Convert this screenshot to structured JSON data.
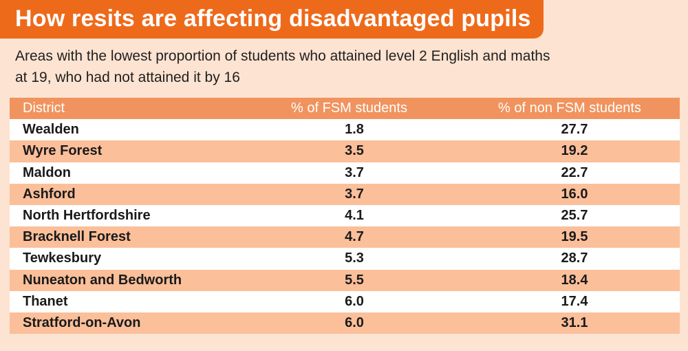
{
  "header": {
    "title": "How resits are affecting disadvantaged pupils",
    "subtitle_line1": "Areas with the lowest proportion of students who attained level 2 English and maths",
    "subtitle_line2": "at 19, who had not attained it by 16"
  },
  "colors": {
    "title_bar": "#ee6a1b",
    "table_header": "#f1935e",
    "row_alt": "#fbbf9a",
    "background": "#fde3d1"
  },
  "chart_data": {
    "type": "table",
    "title": "How resits are affecting disadvantaged pupils",
    "subtitle": "Areas with the lowest proportion of students who attained level 2 English and maths at 19, who had not attained it by 16",
    "columns": [
      "District",
      "% of FSM students",
      "% of non FSM students"
    ],
    "rows": [
      {
        "district": "Wealden",
        "fsm": "1.8",
        "non_fsm": "27.7"
      },
      {
        "district": "Wyre Forest",
        "fsm": "3.5",
        "non_fsm": "19.2"
      },
      {
        "district": "Maldon",
        "fsm": "3.7",
        "non_fsm": "22.7"
      },
      {
        "district": "Ashford",
        "fsm": "3.7",
        "non_fsm": "16.0"
      },
      {
        "district": "North Hertfordshire",
        "fsm": "4.1",
        "non_fsm": "25.7"
      },
      {
        "district": "Bracknell Forest",
        "fsm": "4.7",
        "non_fsm": "19.5"
      },
      {
        "district": "Tewkesbury",
        "fsm": "5.3",
        "non_fsm": "28.7"
      },
      {
        "district": "Nuneaton and Bedworth",
        "fsm": "5.5",
        "non_fsm": "18.4"
      },
      {
        "district": "Thanet",
        "fsm": "6.0",
        "non_fsm": "17.4"
      },
      {
        "district": "Stratford-on-Avon",
        "fsm": "6.0",
        "non_fsm": "31.1"
      }
    ]
  }
}
